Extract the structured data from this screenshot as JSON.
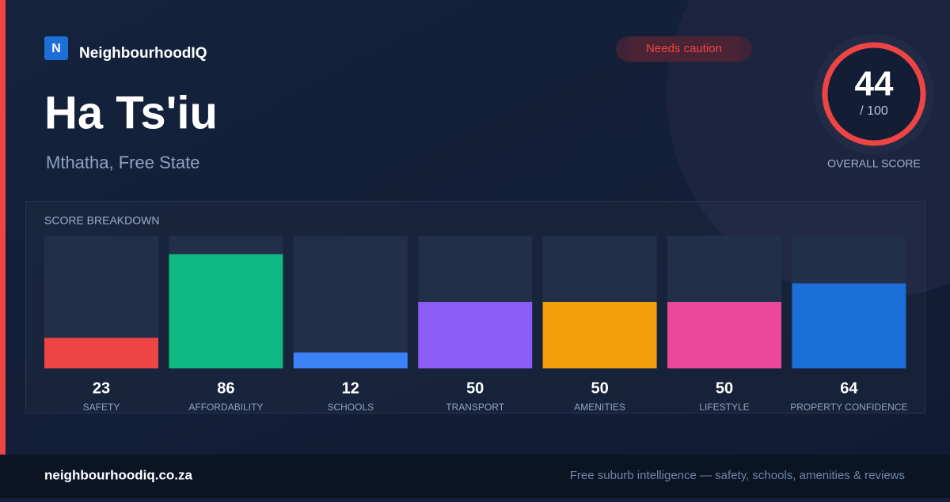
{
  "brand": "NeighbourhoodIQ",
  "logo_letter": "N",
  "badge": "Needs caution",
  "title": "Ha Ts'iu",
  "location": "Mthatha, Free State",
  "score": {
    "value": 44,
    "out_of": "/ 100",
    "label": "OVERALL SCORE"
  },
  "chart_data": {
    "type": "bar",
    "title": "SCORE BREAKDOWN",
    "categories": [
      "SAFETY",
      "AFFORDABILITY",
      "SCHOOLS",
      "TRANSPORT",
      "AMENITIES",
      "LIFESTYLE",
      "PROPERTY CONFIDENCE"
    ],
    "values": [
      23,
      86,
      12,
      50,
      50,
      50,
      64
    ],
    "colors": [
      "#ef4444",
      "#10b981",
      "#3b82f6",
      "#8b5cf6",
      "#f59e0b",
      "#ec4899",
      "#1d6fd8"
    ],
    "ylim": [
      0,
      100
    ]
  },
  "footer": {
    "site": "neighbourhoodiq.co.za",
    "tagline": "Free suburb intelligence — safety, schools, amenities & reviews"
  }
}
